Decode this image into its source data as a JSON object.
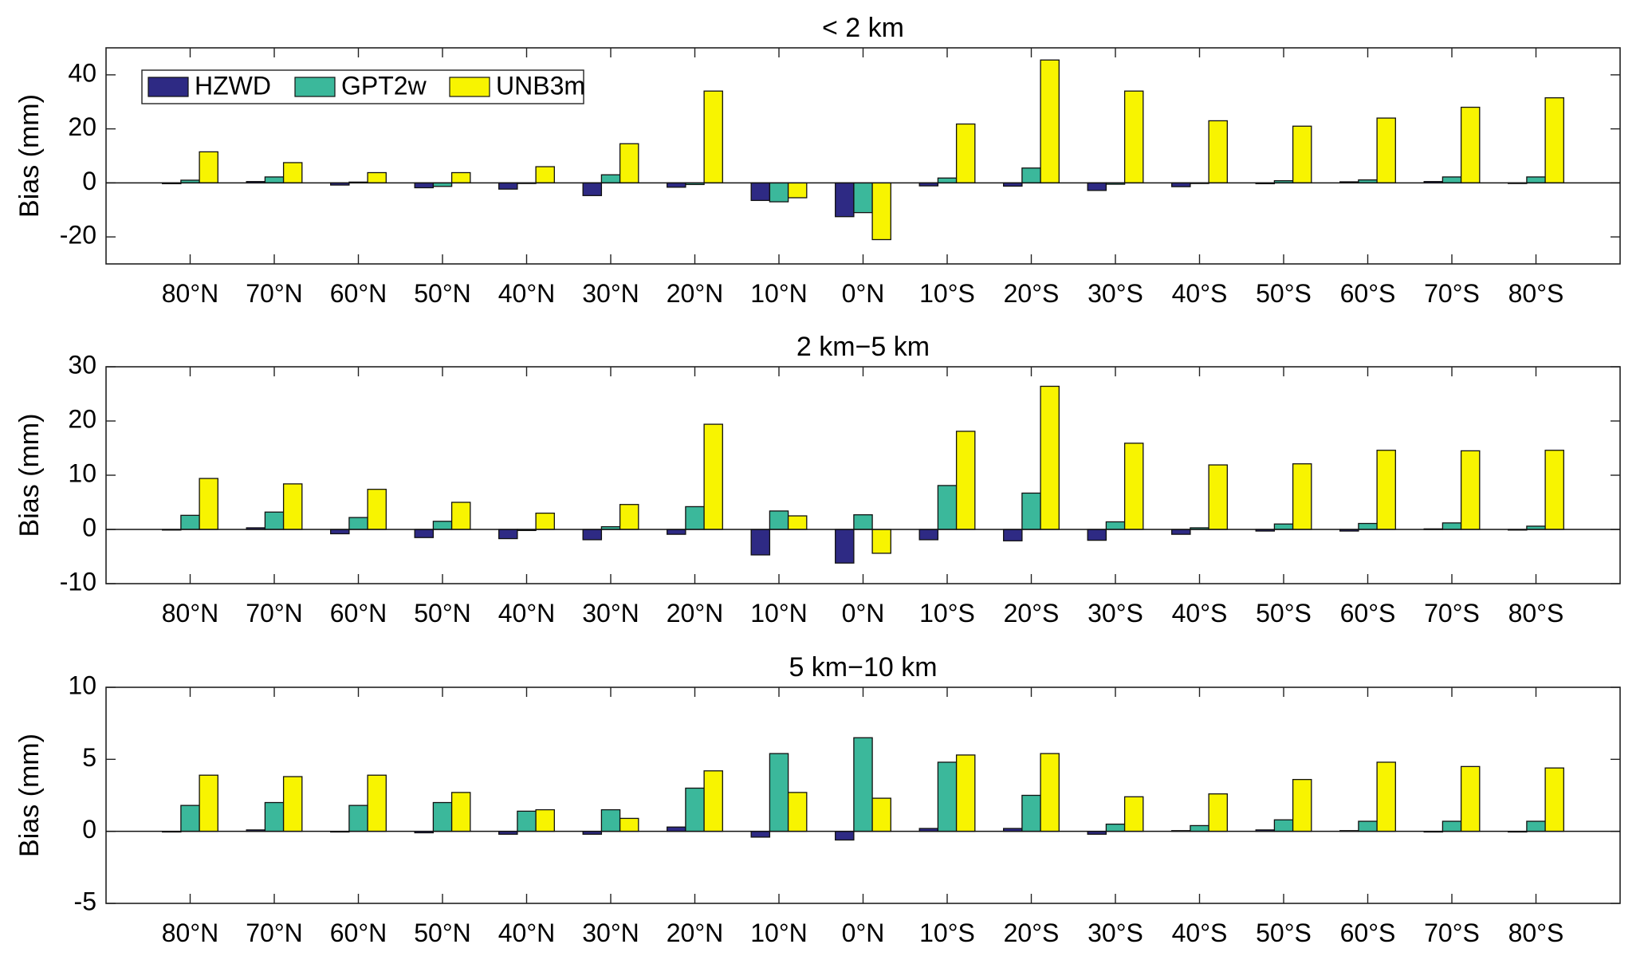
{
  "colors": {
    "HZWD": "#2e2a84",
    "GPT2w": "#3bb89b",
    "UNB3m": "#f8f400"
  },
  "chart_data": [
    {
      "type": "bar",
      "title": "< 2 km",
      "ylabel": "Bias (mm)",
      "ylim": [
        -30,
        50
      ],
      "yticks": [
        -20,
        0,
        20,
        40
      ],
      "categories": [
        "80°N",
        "70°N",
        "60°N",
        "50°N",
        "40°N",
        "30°N",
        "20°N",
        "10°N",
        "0°N",
        "10°S",
        "20°S",
        "30°S",
        "40°S",
        "50°S",
        "60°S",
        "70°S",
        "80°S"
      ],
      "legend": {
        "position": "top-left",
        "entries": [
          "HZWD",
          "GPT2w",
          "UNB3m"
        ]
      },
      "series": [
        {
          "name": "HZWD",
          "values": [
            -0.3,
            0.5,
            -0.8,
            -1.8,
            -2.3,
            -4.7,
            -1.6,
            -6.5,
            -12.5,
            -1.1,
            -1.2,
            -2.8,
            -1.4,
            -0.3,
            0.4,
            0.5,
            -0.2
          ]
        },
        {
          "name": "GPT2w",
          "values": [
            1.0,
            2.2,
            0.3,
            -1.3,
            0.0,
            3.0,
            -0.6,
            -7.0,
            -11.0,
            1.8,
            5.5,
            -0.5,
            0.0,
            0.8,
            1.1,
            2.2,
            2.2
          ]
        },
        {
          "name": "UNB3m",
          "values": [
            11.5,
            7.5,
            3.8,
            3.8,
            6.0,
            14.5,
            34.0,
            -5.5,
            -21.0,
            21.8,
            45.5,
            34.0,
            23.0,
            21.0,
            24.0,
            28.0,
            31.5
          ]
        }
      ]
    },
    {
      "type": "bar",
      "title": "2 km−5 km",
      "ylabel": "Bias (mm)",
      "ylim": [
        -10,
        30
      ],
      "yticks": [
        -10,
        0,
        10,
        20,
        30
      ],
      "categories": [
        "80°N",
        "70°N",
        "60°N",
        "50°N",
        "40°N",
        "30°N",
        "20°N",
        "10°N",
        "0°N",
        "10°S",
        "20°S",
        "30°S",
        "40°S",
        "50°S",
        "60°S",
        "70°S",
        "80°S"
      ],
      "series": [
        {
          "name": "HZWD",
          "values": [
            -0.1,
            0.3,
            -0.8,
            -1.5,
            -1.7,
            -1.9,
            -0.9,
            -4.7,
            -6.2,
            -1.9,
            -2.1,
            -2.0,
            -0.9,
            -0.3,
            -0.3,
            0.1,
            -0.1
          ]
        },
        {
          "name": "GPT2w",
          "values": [
            2.6,
            3.2,
            2.2,
            1.5,
            -0.2,
            0.5,
            4.2,
            3.4,
            2.7,
            8.1,
            6.7,
            1.4,
            0.3,
            1.0,
            1.1,
            1.2,
            0.6
          ]
        },
        {
          "name": "UNB3m",
          "values": [
            9.4,
            8.4,
            7.4,
            5.0,
            3.0,
            4.6,
            19.4,
            2.5,
            -4.4,
            18.1,
            26.4,
            15.9,
            11.9,
            12.1,
            14.6,
            14.5,
            14.6
          ]
        }
      ]
    },
    {
      "type": "bar",
      "title": "5 km−10 km",
      "ylabel": "Bias (mm)",
      "ylim": [
        -5,
        10
      ],
      "yticks": [
        -5,
        0,
        5,
        10
      ],
      "categories": [
        "80°N",
        "70°N",
        "60°N",
        "50°N",
        "40°N",
        "30°N",
        "20°N",
        "10°N",
        "0°N",
        "10°S",
        "20°S",
        "30°S",
        "40°S",
        "50°S",
        "60°S",
        "70°S",
        "80°S"
      ],
      "series": [
        {
          "name": "HZWD",
          "values": [
            0.0,
            0.1,
            0.0,
            -0.1,
            -0.2,
            -0.2,
            0.3,
            -0.4,
            -0.6,
            0.2,
            0.2,
            -0.2,
            0.05,
            0.1,
            0.05,
            0.0,
            0.0
          ]
        },
        {
          "name": "GPT2w",
          "values": [
            1.8,
            2.0,
            1.8,
            2.0,
            1.4,
            1.5,
            3.0,
            5.4,
            6.5,
            4.8,
            2.5,
            0.5,
            0.4,
            0.8,
            0.7,
            0.7,
            0.7
          ]
        },
        {
          "name": "UNB3m",
          "values": [
            3.9,
            3.8,
            3.9,
            2.7,
            1.5,
            0.9,
            4.2,
            2.7,
            2.3,
            5.3,
            5.4,
            2.4,
            2.6,
            3.6,
            4.8,
            4.5,
            4.4
          ]
        }
      ]
    }
  ]
}
